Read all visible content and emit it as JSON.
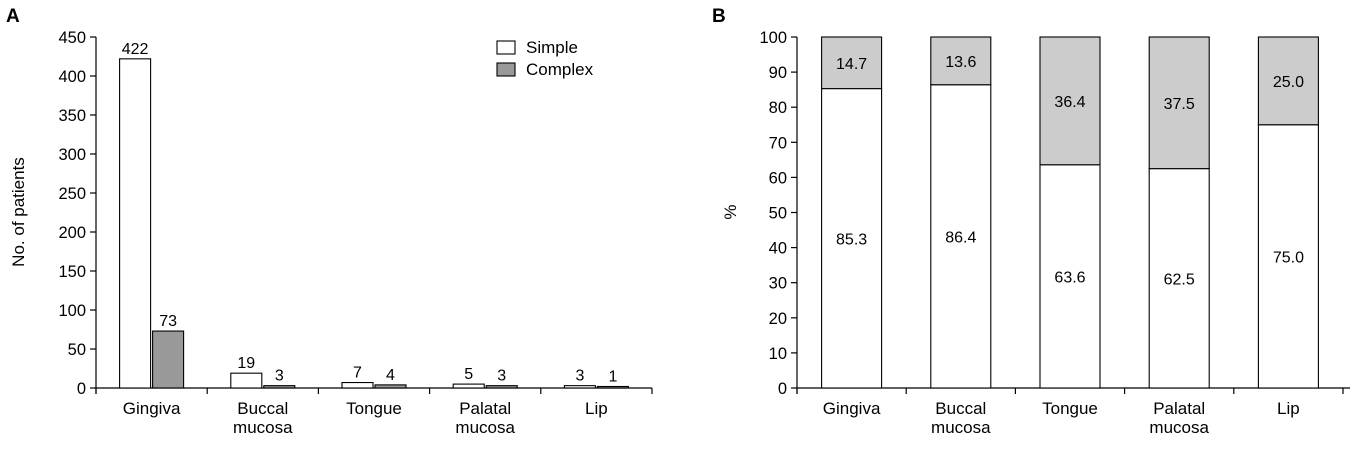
{
  "chart_data": [
    {
      "panel": "A",
      "type": "bar",
      "categories": [
        [
          "Gingiva"
        ],
        [
          "Buccal",
          "mucosa"
        ],
        [
          "Tongue"
        ],
        [
          "Palatal",
          "mucosa"
        ],
        [
          "Lip"
        ]
      ],
      "series": [
        {
          "name": "Simple",
          "values": [
            422,
            19,
            7,
            5,
            3
          ],
          "color": "#ffffff"
        },
        {
          "name": "Complex",
          "values": [
            73,
            3,
            4,
            3,
            1
          ],
          "color": "#999999"
        }
      ],
      "data_labels": [
        [
          "422",
          "19",
          "7",
          "5",
          "3"
        ],
        [
          "73",
          "3",
          "4",
          "3",
          "1"
        ]
      ],
      "ylabel": "No. of patients",
      "xlabel": "",
      "ylim": [
        0,
        450
      ],
      "yticks": [
        0,
        50,
        100,
        150,
        200,
        250,
        300,
        350,
        400,
        450
      ],
      "legend": "top-right",
      "grid": false
    },
    {
      "panel": "B",
      "type": "bar",
      "stacked": true,
      "categories": [
        [
          "Gingiva"
        ],
        [
          "Buccal",
          "mucosa"
        ],
        [
          "Tongue"
        ],
        [
          "Palatal",
          "mucosa"
        ],
        [
          "Lip"
        ]
      ],
      "series": [
        {
          "values": [
            85.3,
            86.4,
            63.6,
            62.5,
            75.0
          ],
          "color": "#ffffff"
        },
        {
          "values": [
            14.7,
            13.6,
            36.4,
            37.5,
            25.0
          ],
          "color": "#cccccc"
        }
      ],
      "data_labels": [
        [
          "85.3",
          "86.4",
          "63.6",
          "62.5",
          "75.0"
        ],
        [
          "14.7",
          "13.6",
          "36.4",
          "37.5",
          "25.0"
        ]
      ],
      "ylabel": "%",
      "xlabel": "",
      "ylim": [
        0,
        100
      ],
      "yticks": [
        0,
        10,
        20,
        30,
        40,
        50,
        60,
        70,
        80,
        90,
        100
      ],
      "grid": false
    }
  ]
}
